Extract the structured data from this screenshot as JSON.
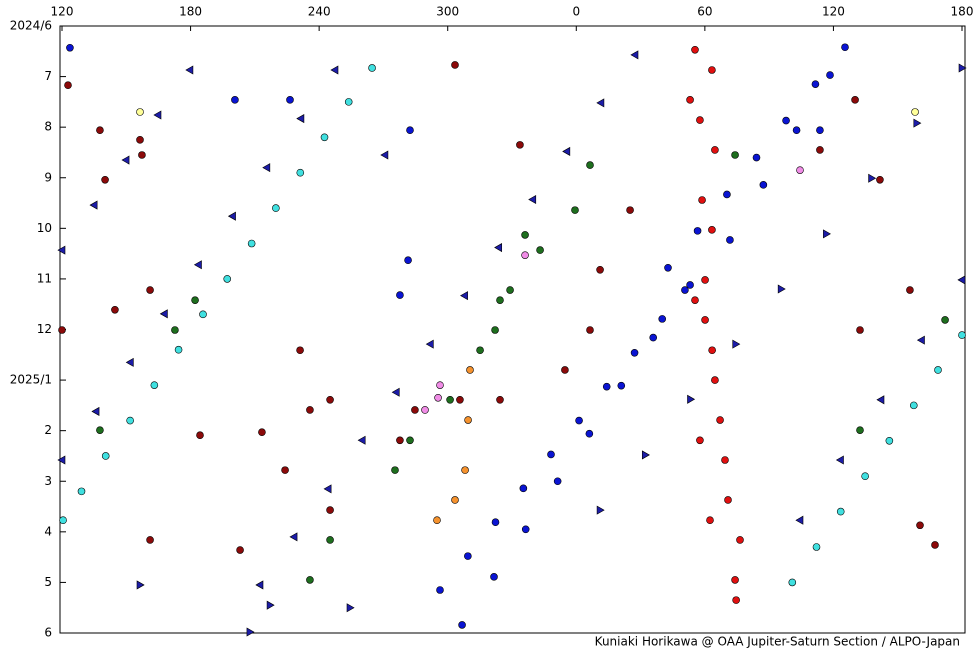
{
  "chart_data": {
    "type": "scatter",
    "credit": "Kuniaki Horikawa @ OAA Jupiter-Saturn Section / ALPO-Japan",
    "xlim": [
      120,
      540
    ],
    "xticks": [
      120,
      180,
      240,
      300,
      {
        "value": 360,
        "label": "0"
      },
      {
        "value": 420,
        "label": "60"
      },
      {
        "value": 480,
        "label": "120"
      },
      {
        "value": 540,
        "label": "180"
      }
    ],
    "ylim": [
      0,
      12
    ],
    "yticks": [
      {
        "value": 0,
        "label": "2024/6"
      },
      {
        "value": 1,
        "label": "7"
      },
      {
        "value": 2,
        "label": "8"
      },
      {
        "value": 3,
        "label": "9"
      },
      {
        "value": 4,
        "label": "10"
      },
      {
        "value": 5,
        "label": "11"
      },
      {
        "value": 6,
        "label": "12"
      },
      {
        "value": 7,
        "label": "2025/1"
      },
      {
        "value": 8,
        "label": "2"
      },
      {
        "value": 9,
        "label": "3"
      },
      {
        "value": 10,
        "label": "4"
      },
      {
        "value": 11,
        "label": "5"
      },
      {
        "value": 12,
        "label": "6"
      }
    ],
    "y_reversed": true,
    "series": [
      {
        "color": "#40e0e0",
        "marker": "circle",
        "x": [
          264.7,
          253.8,
          242.5,
          231.2,
          219.8,
          208.5,
          197.1,
          185.8,
          174.4,
          163.1,
          151.8,
          140.4,
          129.1,
          120.5,
          540,
          528.8,
          517.5,
          506.1,
          494.8,
          483.4,
          472.1,
          460.8
        ],
        "values": [
          0.83,
          1.5,
          2.2,
          2.9,
          3.6,
          4.3,
          5.0,
          5.7,
          6.4,
          7.1,
          7.8,
          8.5,
          9.2,
          9.77,
          6.11,
          6.8,
          7.5,
          8.2,
          8.9,
          9.6,
          10.3,
          11.0
        ]
      },
      {
        "color": "#1c1ca8",
        "marker": "tri-left",
        "x": [
          120,
          135,
          149.9,
          164.8,
          179.7,
          120,
          135.9,
          151.9,
          167.8,
          183.7,
          199.6,
          215.6,
          231.5,
          247.4,
          212.4,
          228.3,
          244.2,
          260.1,
          276.0,
          291.9,
          307.9,
          323.8,
          339.7,
          355.6,
          371.5,
          387.4,
          464.4,
          483.3,
          502.2,
          521.1,
          540,
          270.7
        ],
        "values": [
          4.43,
          3.54,
          2.65,
          1.76,
          0.87,
          8.58,
          7.62,
          6.65,
          5.69,
          4.72,
          3.76,
          2.8,
          1.83,
          0.87,
          11.05,
          10.1,
          9.15,
          8.19,
          7.24,
          6.29,
          5.33,
          4.38,
          3.43,
          2.48,
          1.52,
          0.57,
          9.77,
          8.58,
          7.39,
          6.21,
          5.02,
          2.55
        ]
      },
      {
        "color": "#1c1ca8",
        "marker": "tri-right",
        "x": [
          371.1,
          392.2,
          413.3,
          434.4,
          455.6,
          476.7,
          497.8,
          518.9,
          540,
          207.7,
          254.4,
          217.1,
          156.4
        ],
        "values": [
          9.57,
          8.48,
          7.38,
          6.29,
          5.2,
          4.11,
          3.01,
          1.92,
          0.83,
          11.98,
          11.5,
          11.45,
          11.05
        ]
      },
      {
        "color": "#0a14d2",
        "marker": "circle",
        "x": [
          123.7,
          200.7,
          226.4,
          282.4,
          277.7,
          281.5,
          296.4,
          309.4,
          322.3,
          335.3,
          348.2,
          361.3,
          374.2,
          387.2,
          400.1,
          413.1,
          306.7,
          321.6,
          336.4,
          351.3,
          366.1,
          381.0,
          395.9,
          410.7,
          402.8,
          416.6,
          430.3,
          444.1,
          457.9,
          471.6,
          485.4,
          431.7,
          447.3,
          462.8,
          478.4,
          473.7
        ],
        "values": [
          0.43,
          1.46,
          1.46,
          2.06,
          5.32,
          4.63,
          11.15,
          10.48,
          9.81,
          9.14,
          8.47,
          7.8,
          7.13,
          6.46,
          5.79,
          5.12,
          11.84,
          10.89,
          9.95,
          9.0,
          8.06,
          7.11,
          6.16,
          5.22,
          4.78,
          4.05,
          3.33,
          2.6,
          1.87,
          1.15,
          0.42,
          4.23,
          3.14,
          2.06,
          0.97,
          2.06
        ]
      },
      {
        "color": "#8b0a0a",
        "marker": "circle",
        "x": [
          137.7,
          156.4,
          140.1,
          122.8,
          144.7,
          161.1,
          231.1,
          235.7,
          245.1,
          224.1,
          245.1,
          333.7,
          371.1,
          366.4,
          385.1,
          354.7,
          324.4,
          305.7,
          161.1,
          203.1,
          473.7,
          490.1,
          501.7,
          515.7,
          492.4,
          520.4,
          527.4,
          120,
          303.4,
          284.7,
          277.7,
          157.3,
          184.4,
          213.3
        ],
        "values": [
          2.06,
          2.25,
          3.04,
          1.17,
          5.61,
          5.22,
          6.41,
          7.59,
          7.39,
          8.78,
          9.57,
          2.35,
          4.82,
          6.01,
          3.64,
          6.8,
          7.39,
          7.39,
          10.16,
          10.36,
          2.45,
          1.46,
          3.04,
          5.22,
          6.01,
          9.87,
          10.26,
          6.01,
          0.77,
          7.59,
          8.19,
          2.55,
          8.09,
          8.03
        ]
      },
      {
        "color": "#1e6e1e",
        "marker": "circle",
        "x": [
          366.4,
          359.4,
          343.1,
          329.1,
          322.1,
          315.1,
          301.1,
          282.4,
          275.4,
          245.1,
          235.7,
          172.7,
          182.1,
          137.7,
          492.4,
          532.1,
          434.1,
          336.1,
          324.4
        ],
        "values": [
          2.75,
          3.64,
          4.43,
          5.22,
          6.01,
          6.41,
          7.39,
          8.19,
          8.78,
          10.16,
          10.95,
          6.01,
          5.42,
          7.99,
          7.99,
          5.81,
          2.55,
          4.13,
          5.42
        ]
      },
      {
        "color": "#e01010",
        "marker": "circle",
        "x": [
          415.4,
          417.7,
          418.7,
          420.1,
          423.4,
          427.1,
          430.8,
          434.1,
          434.6,
          423.3,
          424.7,
          423.3,
          420.1,
          424.7,
          429.4,
          436.4,
          413.1,
          415.4,
          417.7,
          422.4
        ],
        "values": [
          0.47,
          1.86,
          3.44,
          5.02,
          6.41,
          7.79,
          9.37,
          10.95,
          11.35,
          0.87,
          2.45,
          4.03,
          5.81,
          7.0,
          8.58,
          10.16,
          1.46,
          5.42,
          8.19,
          9.77
        ]
      },
      {
        "color": "#f5922e",
        "marker": "circle",
        "x": [
          310.4,
          309.5,
          308.1,
          303.4,
          295.0
        ],
        "values": [
          6.8,
          7.79,
          8.78,
          9.37,
          9.77
        ]
      },
      {
        "color": "#f08ce6",
        "marker": "circle",
        "x": [
          296.4,
          289.4,
          336.1,
          464.4,
          295.5
        ],
        "values": [
          7.1,
          7.59,
          4.53,
          2.85,
          7.35
        ]
      },
      {
        "color": "#ffff99",
        "marker": "circle",
        "x": [
          156.4,
          518.1
        ],
        "values": [
          1.7,
          1.7
        ]
      }
    ]
  }
}
